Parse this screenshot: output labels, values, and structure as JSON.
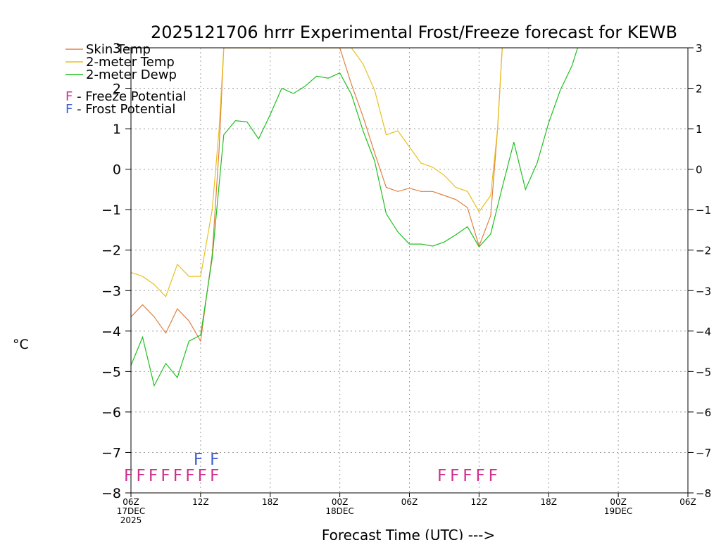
{
  "chart_data": {
    "type": "line",
    "title": "2025121706 hrrr Experimental Frost/Freeze forecast for KEWB",
    "ylabel": "°C",
    "xlabel": "Forecast Time (UTC) --->",
    "ylim": [
      -8,
      3
    ],
    "xlim": [
      0,
      48
    ],
    "yticks": [
      -8,
      -7,
      -6,
      -5,
      -4,
      -3,
      -2,
      -1,
      0,
      1,
      2,
      3
    ],
    "xticks": [
      {
        "x": 0,
        "label": "06Z",
        "sub": [
          "17DEC",
          "2025"
        ]
      },
      {
        "x": 6,
        "label": "12Z",
        "sub": []
      },
      {
        "x": 12,
        "label": "18Z",
        "sub": []
      },
      {
        "x": 18,
        "label": "00Z",
        "sub": [
          "18DEC"
        ]
      },
      {
        "x": 24,
        "label": "06Z",
        "sub": []
      },
      {
        "x": 30,
        "label": "12Z",
        "sub": []
      },
      {
        "x": 36,
        "label": "18Z",
        "sub": []
      },
      {
        "x": 42,
        "label": "00Z",
        "sub": [
          "19DEC"
        ]
      },
      {
        "x": 48,
        "label": "06Z",
        "sub": []
      }
    ],
    "grid": true,
    "series": [
      {
        "name": "Skin Temp",
        "color": "#e08040",
        "points": [
          [
            0,
            -3.65
          ],
          [
            1,
            -3.35
          ],
          [
            2,
            -3.65
          ],
          [
            3,
            -4.05
          ],
          [
            4,
            -3.45
          ],
          [
            5,
            -3.75
          ],
          [
            6,
            -4.25
          ],
          [
            7,
            -2.1
          ],
          [
            7.6,
            0.5
          ],
          [
            8,
            3.0
          ],
          [
            18,
            3.0
          ],
          [
            19,
            2.1
          ],
          [
            20,
            1.3
          ],
          [
            21,
            0.4
          ],
          [
            22,
            -0.45
          ],
          [
            23,
            -0.55
          ],
          [
            24,
            -0.47
          ],
          [
            25,
            -0.55
          ],
          [
            26,
            -0.55
          ],
          [
            27,
            -0.65
          ],
          [
            28,
            -0.75
          ],
          [
            29,
            -0.95
          ],
          [
            30,
            -1.9
          ],
          [
            31,
            -1.15
          ],
          [
            31.6,
            1.0
          ],
          [
            32,
            3.0
          ]
        ]
      },
      {
        "name": "2-meter Temp",
        "color": "#e8c020",
        "points": [
          [
            0,
            -2.55
          ],
          [
            1,
            -2.65
          ],
          [
            2,
            -2.85
          ],
          [
            3,
            -3.15
          ],
          [
            4,
            -2.35
          ],
          [
            5,
            -2.65
          ],
          [
            6,
            -2.65
          ],
          [
            7,
            -1.0
          ],
          [
            7.6,
            1.0
          ],
          [
            8,
            3.0
          ],
          [
            19,
            3.0
          ],
          [
            20,
            2.6
          ],
          [
            21,
            1.95
          ],
          [
            22,
            0.85
          ],
          [
            23,
            0.95
          ],
          [
            24,
            0.55
          ],
          [
            25,
            0.15
          ],
          [
            26,
            0.05
          ],
          [
            27,
            -0.15
          ],
          [
            28,
            -0.45
          ],
          [
            29,
            -0.55
          ],
          [
            30,
            -1.05
          ],
          [
            31,
            -0.65
          ],
          [
            31.6,
            1.0
          ],
          [
            32,
            3.0
          ]
        ]
      },
      {
        "name": "2-meter Dewp",
        "color": "#20c020",
        "points": [
          [
            0,
            -4.85
          ],
          [
            1,
            -4.15
          ],
          [
            2,
            -5.35
          ],
          [
            3,
            -4.8
          ],
          [
            4,
            -5.15
          ],
          [
            5,
            -4.25
          ],
          [
            6,
            -4.1
          ],
          [
            7,
            -2.2
          ],
          [
            8,
            0.85
          ],
          [
            9,
            1.2
          ],
          [
            10,
            1.17
          ],
          [
            11,
            0.75
          ],
          [
            12,
            1.35
          ],
          [
            13,
            2.0
          ],
          [
            14,
            1.87
          ],
          [
            15,
            2.05
          ],
          [
            16,
            2.3
          ],
          [
            17,
            2.25
          ],
          [
            18,
            2.38
          ],
          [
            19,
            1.85
          ],
          [
            20,
            0.95
          ],
          [
            21,
            0.2
          ],
          [
            22,
            -1.1
          ],
          [
            23,
            -1.55
          ],
          [
            24,
            -1.85
          ],
          [
            25,
            -1.85
          ],
          [
            26,
            -1.9
          ],
          [
            27,
            -1.8
          ],
          [
            28,
            -1.62
          ],
          [
            29,
            -1.42
          ],
          [
            30,
            -1.92
          ],
          [
            31,
            -1.6
          ],
          [
            32,
            -0.45
          ],
          [
            33,
            0.67
          ],
          [
            34,
            -0.5
          ],
          [
            35,
            0.15
          ],
          [
            36,
            1.15
          ],
          [
            37,
            1.95
          ],
          [
            38,
            2.55
          ],
          [
            38.5,
            3.0
          ]
        ]
      }
    ],
    "legend": [
      {
        "label": "Skin Temp",
        "color": "#e08040"
      },
      {
        "label": "2-meter Temp",
        "color": "#e8c020"
      },
      {
        "label": "2-meter Dewp",
        "color": "#20c020"
      }
    ],
    "annotations": [
      {
        "letter": "F",
        "text": " - Freeze Potential",
        "color": "#d03090"
      },
      {
        "letter": "F",
        "text": " - Frost Potential",
        "color": "#4060d0"
      }
    ],
    "freeze_potential": {
      "label": "FFFFFFFF",
      "x_start": 0,
      "x_end": 7,
      "color": "#d03090",
      "row": -7.55
    },
    "freeze_potential_2": {
      "label": "FFFFF",
      "x_start": 27,
      "x_end": 31,
      "color": "#d03090",
      "row": -7.55
    },
    "frost_potential": {
      "label": "FF",
      "x_start": 6,
      "x_end": 7,
      "color": "#4060d0",
      "row": -7.15
    }
  }
}
